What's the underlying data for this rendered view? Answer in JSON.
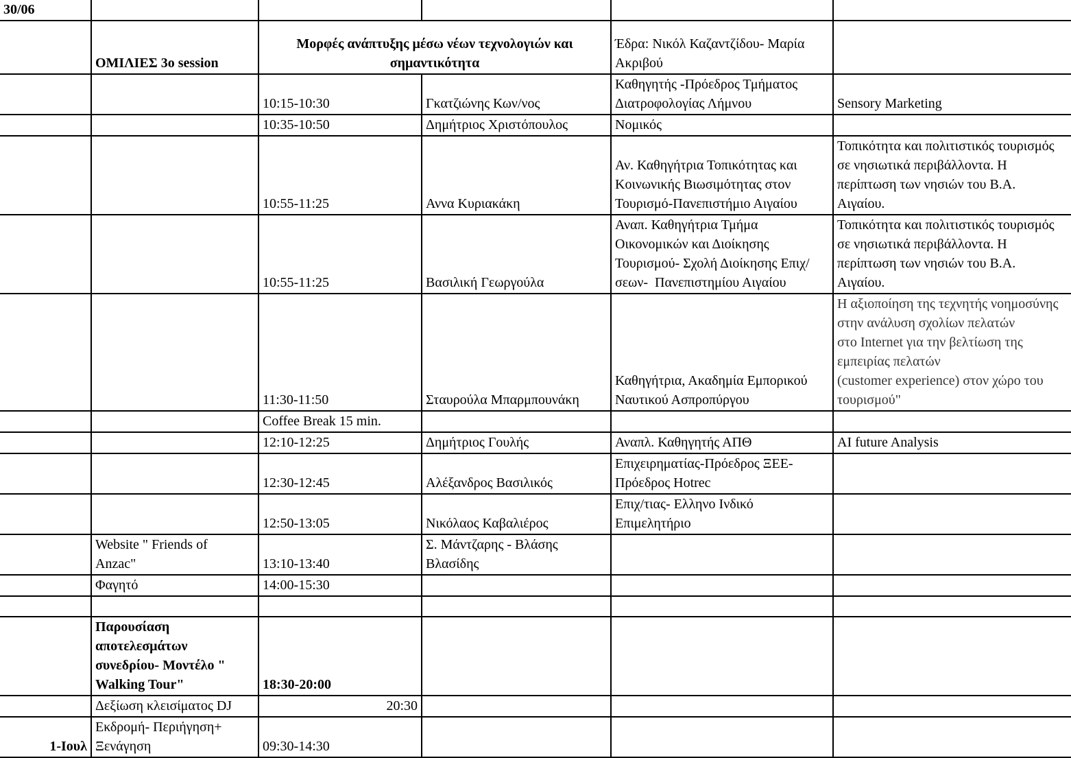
{
  "rows": [
    {
      "date": "30/06",
      "a": "",
      "time": "",
      "speaker": "",
      "role": "",
      "topic": ""
    },
    {
      "date": "",
      "a": "ΟΜΙΛΙΕΣ 3ο session",
      "session_title": "Μορφές ανάπτυξης μέσω νέων τεχνολογιών και\nσημαντικότητα",
      "role": "Έδρα: Νικόλ Καζαντζίδου- Μαρία\nΑκριβού",
      "topic": ""
    },
    {
      "date": "",
      "a": "",
      "time": "10:15-10:30",
      "speaker": "Γκατζιώνης Κων/νος",
      "role": "Καθηγητής -Πρόεδρος Τμήματος\nΔιατροφολογίας Λήμνου",
      "topic": "Sensory Marketing"
    },
    {
      "date": "",
      "a": "",
      "time": "10:35-10:50",
      "speaker": "Δημήτριος Χριστόπουλος",
      "role": "Νομικός",
      "topic": ""
    },
    {
      "date": "",
      "a": "",
      "time": "10:55-11:25",
      "speaker": "Αννα Κυριακάκη",
      "role": "Αν. Καθηγήτρια Τοπικότητας και\nΚοινωνικής Βιωσιμότητας στον\nΤουρισμό-Πανεπιστήμιο Αιγαίου",
      "topic": "Τοπικότητα και πολιτιστικός τουρισμός\nσε νησιωτικά περιβάλλοντα. Η\nπερίπτωση των νησιών του Β.Α.\nΑιγαίου."
    },
    {
      "date": "",
      "a": "",
      "time": "10:55-11:25",
      "speaker": "Βασιλική Γεωργούλα",
      "role": "Αναπ. Καθηγήτρια Τμήμα\nΟικονομικών και Διοίκησης\nΤουρισμού- Σχολή Διοίκησης Επιχ/\nσεων-  Πανεπιστημίου Αιγαίου",
      "topic": "Τοπικότητα και πολιτιστικός τουρισμός\nσε νησιωτικά περιβάλλοντα. Η\nπερίπτωση των νησιών του Β.Α.\nΑιγαίου."
    },
    {
      "date": "",
      "a": "",
      "time": "11:30-11:50",
      "speaker": "Σταυρούλα Μπαρμπουνάκη",
      "role": "Καθηγήτρια, Ακαδημία Εμπορικού\nΝαυτικού Ασπροπύργου",
      "topic": "Η αξιοποίηση της τεχνητής νοημοσύνης\nστην ανάλυση σχολίων πελατών\nστο Internet για την βελτίωση της\nεμπειρίας πελατών\n(customer experience) στον χώρο του\nτουρισμού\""
    },
    {
      "date": "",
      "a": "",
      "time": "Coffee Break 15 min.",
      "speaker": "",
      "role": "",
      "topic": ""
    },
    {
      "date": "",
      "a": "",
      "time": "12:10-12:25",
      "speaker": "Δημήτριος Γουλής",
      "role": "Αναπλ. Καθηγητής ΑΠΘ",
      "topic": "AI future Analysis"
    },
    {
      "date": "",
      "a": "",
      "time": "12:30-12:45",
      "speaker": "Αλέξανδρος Βασιλικός",
      "role": "Επιχειρηματίας-Πρόεδρος ΞΕΕ-\nΠρόεδρος Hotrec",
      "topic": ""
    },
    {
      "date": "",
      "a": "",
      "time": "12:50-13:05",
      "speaker": "Νικόλαος Καβαλιέρος",
      "role": "Επιχ/τιας- Ελληνο Ινδικό\nΕπιμελητήριο",
      "topic": ""
    },
    {
      "date": "",
      "a": "Website \" Friends of\nAnzac\"",
      "time": "13:10-13:40",
      "speaker": "Σ. Μάντζαρης - Βλάσης\nΒλασίδης",
      "role": "",
      "topic": ""
    },
    {
      "date": "",
      "a": "Φαγητό",
      "time": "14:00-15:30",
      "speaker": "",
      "role": "",
      "topic": ""
    },
    {
      "date": "",
      "a": "",
      "time": "",
      "speaker": "",
      "role": "",
      "topic": ""
    },
    {
      "date": "",
      "a": "Παρουσίαση\nαποτελεσμάτων\nσυνεδρίου- Μοντέλο \"\nWalking Tour\"",
      "time": "18:30-20:00",
      "speaker": "",
      "role": "",
      "topic": ""
    },
    {
      "date": "",
      "a": "Δεξίωση κλεισίματος DJ",
      "time": "20:30",
      "speaker": "",
      "role": "",
      "topic": ""
    },
    {
      "date": "1-Ιουλ",
      "a": "Εκδρομή- Περιήγηση+\nΞενάγηση",
      "time": "09:30-14:30",
      "speaker": "",
      "role": "",
      "topic": ""
    }
  ]
}
